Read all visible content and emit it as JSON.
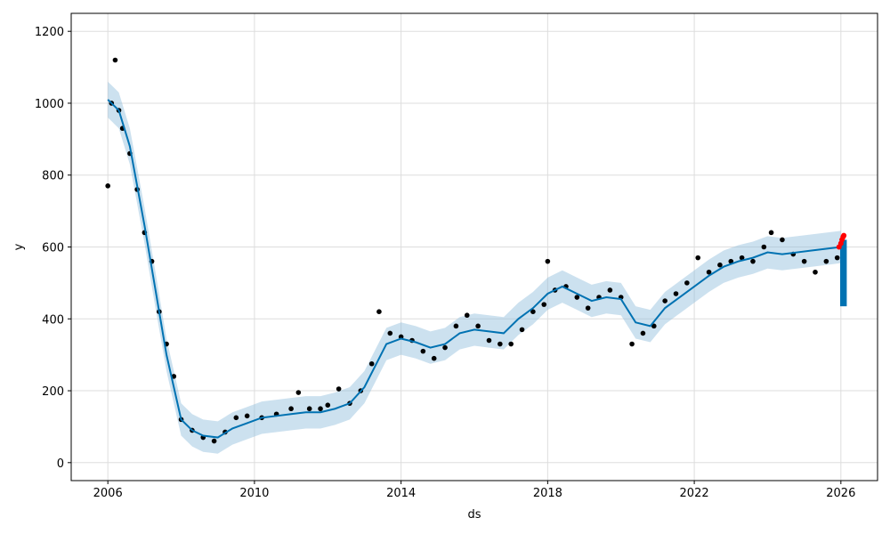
{
  "chart_data": {
    "type": "scatter",
    "title": "",
    "xlabel": "ds",
    "ylabel": "y",
    "xlim": [
      2005.0,
      2027.0
    ],
    "ylim": [
      -50,
      1250
    ],
    "x_ticks": [
      2006,
      2010,
      2014,
      2018,
      2022,
      2026
    ],
    "x_tick_labels": [
      "2006",
      "2010",
      "2014",
      "2018",
      "2022",
      "2026"
    ],
    "y_ticks": [
      0,
      200,
      400,
      600,
      800,
      1000,
      1200
    ],
    "y_tick_labels": [
      "0",
      "200",
      "400",
      "600",
      "800",
      "1000",
      "1200"
    ],
    "grid": true,
    "colors": {
      "observed": "#000000",
      "forecast": "#0072B2",
      "uncertainty": "#8fbcdb",
      "recent": "#ff0000",
      "grid": "#dddddd"
    },
    "observed": {
      "x": [
        2006.0,
        2006.1,
        2006.2,
        2006.3,
        2006.4,
        2006.6,
        2006.8,
        2007.0,
        2007.2,
        2007.4,
        2007.6,
        2007.8,
        2008.0,
        2008.3,
        2008.6,
        2008.9,
        2009.2,
        2009.5,
        2009.8,
        2010.2,
        2010.6,
        2011.0,
        2011.2,
        2011.5,
        2011.8,
        2012.0,
        2012.3,
        2012.6,
        2012.9,
        2013.2,
        2013.4,
        2013.7,
        2014.0,
        2014.3,
        2014.6,
        2014.9,
        2015.2,
        2015.5,
        2015.8,
        2016.1,
        2016.4,
        2016.7,
        2017.0,
        2017.3,
        2017.6,
        2017.9,
        2018.0,
        2018.2,
        2018.5,
        2018.8,
        2019.1,
        2019.4,
        2019.7,
        2020.0,
        2020.3,
        2020.6,
        2020.9,
        2021.2,
        2021.5,
        2021.8,
        2022.1,
        2022.4,
        2022.7,
        2023.0,
        2023.3,
        2023.6,
        2023.9,
        2024.1,
        2024.4,
        2024.7,
        2025.0,
        2025.3,
        2025.6,
        2025.9
      ],
      "y": [
        770,
        1000,
        1120,
        980,
        930,
        860,
        760,
        640,
        560,
        420,
        330,
        240,
        120,
        90,
        70,
        60,
        85,
        125,
        130,
        125,
        135,
        150,
        195,
        150,
        150,
        160,
        205,
        165,
        200,
        275,
        420,
        360,
        350,
        340,
        310,
        290,
        320,
        380,
        410,
        380,
        340,
        330,
        330,
        370,
        420,
        440,
        560,
        480,
        490,
        460,
        430,
        460,
        480,
        460,
        330,
        360,
        380,
        450,
        470,
        500,
        570,
        530,
        550,
        560,
        570,
        560,
        600,
        640,
        620,
        580,
        560,
        530,
        560,
        570
      ]
    },
    "forecast": {
      "x": [
        2006.0,
        2006.3,
        2006.6,
        2007.0,
        2007.3,
        2007.6,
        2008.0,
        2008.3,
        2008.6,
        2009.0,
        2009.4,
        2009.8,
        2010.2,
        2010.6,
        2011.0,
        2011.4,
        2011.8,
        2012.2,
        2012.6,
        2013.0,
        2013.3,
        2013.6,
        2014.0,
        2014.4,
        2014.8,
        2015.2,
        2015.6,
        2016.0,
        2016.4,
        2016.8,
        2017.2,
        2017.6,
        2018.0,
        2018.4,
        2018.8,
        2019.2,
        2019.6,
        2020.0,
        2020.4,
        2020.8,
        2021.2,
        2021.6,
        2022.0,
        2022.4,
        2022.8,
        2023.2,
        2023.6,
        2024.0,
        2024.4,
        2024.8,
        2025.2,
        2025.6,
        2026.0
      ],
      "yhat": [
        1010,
        980,
        880,
        660,
        480,
        300,
        120,
        90,
        75,
        70,
        95,
        110,
        125,
        130,
        135,
        140,
        140,
        150,
        165,
        210,
        270,
        330,
        345,
        335,
        320,
        330,
        360,
        370,
        365,
        360,
        400,
        430,
        470,
        490,
        470,
        450,
        460,
        455,
        390,
        380,
        430,
        460,
        490,
        520,
        545,
        560,
        570,
        585,
        580,
        585,
        590,
        595,
        600
      ],
      "yhat_lower": [
        960,
        930,
        830,
        610,
        430,
        255,
        75,
        45,
        30,
        25,
        50,
        65,
        80,
        85,
        90,
        95,
        95,
        105,
        120,
        165,
        225,
        285,
        300,
        290,
        275,
        285,
        315,
        325,
        320,
        315,
        355,
        385,
        425,
        445,
        425,
        405,
        415,
        410,
        345,
        335,
        385,
        415,
        445,
        475,
        500,
        515,
        525,
        540,
        535,
        540,
        545,
        550,
        555
      ],
      "yhat_upper": [
        1060,
        1030,
        930,
        710,
        530,
        345,
        165,
        135,
        120,
        115,
        140,
        155,
        170,
        175,
        180,
        185,
        185,
        195,
        210,
        255,
        315,
        375,
        390,
        380,
        365,
        375,
        405,
        415,
        410,
        405,
        445,
        475,
        515,
        535,
        515,
        495,
        505,
        500,
        435,
        425,
        475,
        505,
        535,
        565,
        590,
        605,
        615,
        630,
        625,
        630,
        635,
        640,
        645
      ]
    },
    "recent_points": {
      "x": [
        2025.95,
        2026.0,
        2026.03,
        2026.06,
        2026.08
      ],
      "y": [
        600,
        610,
        620,
        628,
        632
      ]
    },
    "forecast_span": {
      "x_start": 2025.98,
      "x_end": 2026.16,
      "low": 435,
      "high": 620
    }
  }
}
